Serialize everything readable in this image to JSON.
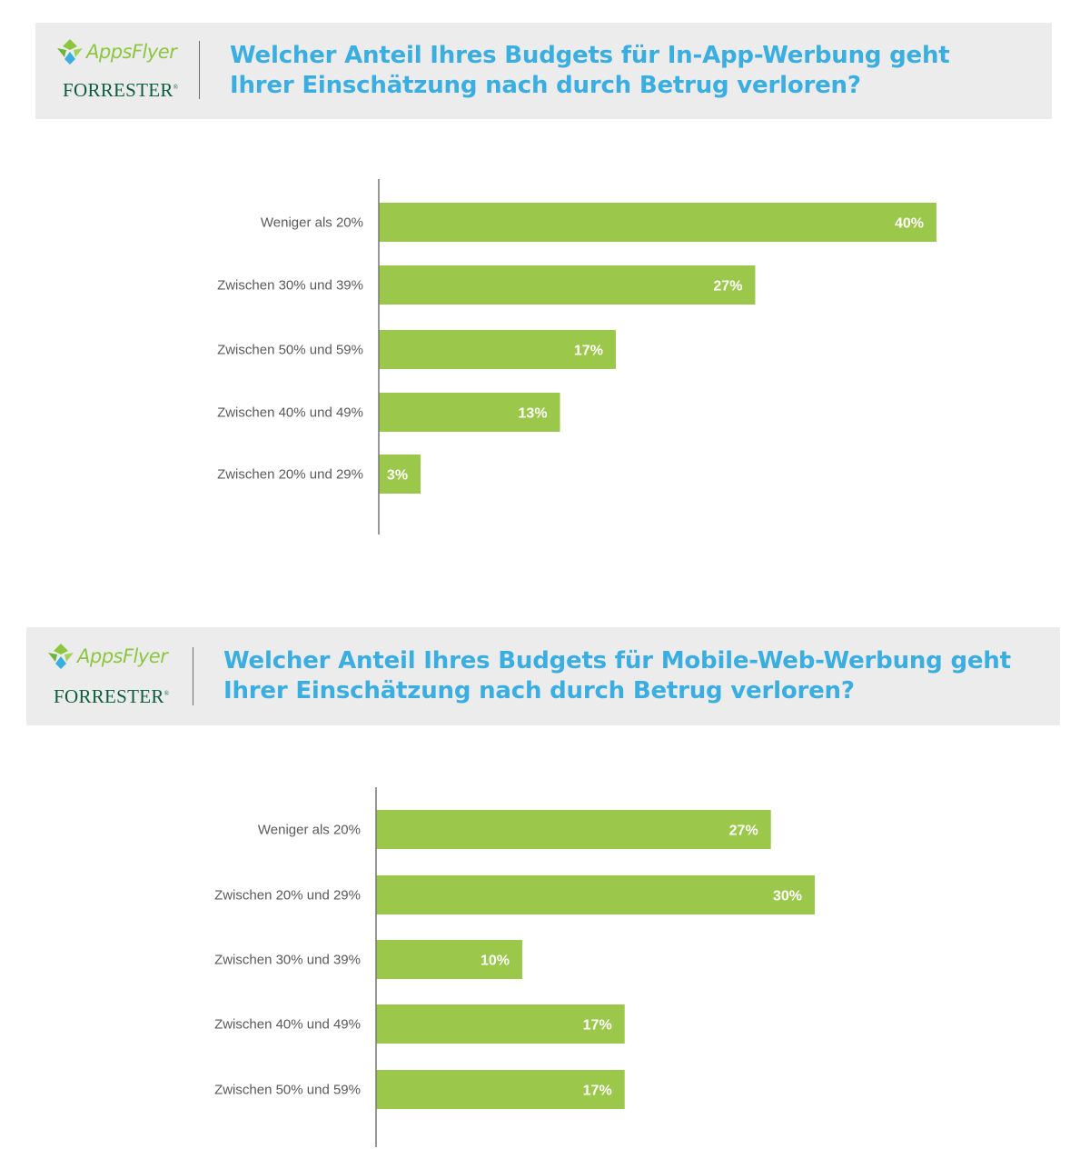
{
  "brand": {
    "appsflyer": "AppsFlyer",
    "forrester": "FORRESTER",
    "forrester_mark": "®"
  },
  "colors": {
    "bar": "#9bc84a",
    "title": "#3aaee0",
    "header_bg": "#ececec",
    "forrester": "#0b5d3c"
  },
  "panels": [
    {
      "title_line1": "Welcher Anteil Ihres Budgets für In-App-Werbung geht",
      "title_line2": "Ihrer Einschätzung nach durch Betrug verloren?"
    },
    {
      "title_line1": "Welcher Anteil Ihres Budgets für Mobile-Web-Werbung geht",
      "title_line2": "Ihrer Einschätzung nach durch Betrug verloren?"
    }
  ],
  "chart_data": [
    {
      "type": "bar",
      "orientation": "horizontal",
      "title": "Welcher Anteil Ihres Budgets für In-App-Werbung geht Ihrer Einschätzung nach durch Betrug verloren?",
      "categories": [
        "Weniger als 20%",
        "Zwischen 30% und 39%",
        "Zwischen 50% und 59%",
        "Zwischen 40% und 49%",
        "Zwischen 20% und 29%"
      ],
      "values": [
        40,
        27,
        17,
        13,
        3
      ],
      "value_labels": [
        "40%",
        "27%",
        "17%",
        "13%",
        "3%"
      ],
      "xlim": [
        0,
        40
      ],
      "grid": false,
      "legend": "none"
    },
    {
      "type": "bar",
      "orientation": "horizontal",
      "title": "Welcher Anteil Ihres Budgets für Mobile-Web-Werbung geht Ihrer Einschätzung nach durch Betrug verloren?",
      "categories": [
        "Weniger als 20%",
        "Zwischen 20% und 29%",
        "Zwischen 30% und 39%",
        "Zwischen 40% und 49%",
        "Zwischen 50% und 59%"
      ],
      "values": [
        27,
        30,
        10,
        17,
        17
      ],
      "value_labels": [
        "27%",
        "30%",
        "10%",
        "17%",
        "17%"
      ],
      "xlim": [
        0,
        40
      ],
      "grid": false,
      "legend": "none"
    }
  ]
}
